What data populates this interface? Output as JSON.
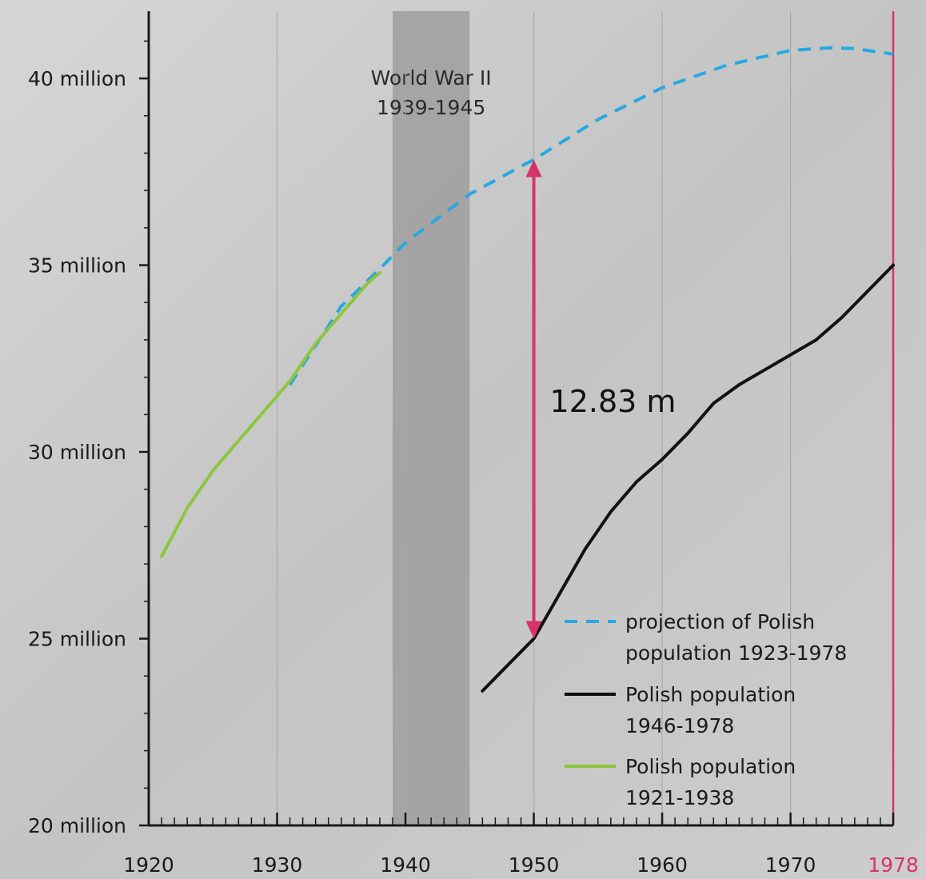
{
  "chart_data": {
    "type": "line",
    "xlim": [
      1920,
      1978
    ],
    "ylim": [
      20,
      41.8
    ],
    "y_unit": "million",
    "grid": "vertical lines at decades",
    "x_ticks": [
      {
        "value": 1920,
        "label": "1920"
      },
      {
        "value": 1930,
        "label": "1930"
      },
      {
        "value": 1940,
        "label": "1940"
      },
      {
        "value": 1950,
        "label": "1950"
      },
      {
        "value": 1960,
        "label": "1960"
      },
      {
        "value": 1970,
        "label": "1970"
      },
      {
        "value": 1978,
        "label": "1978",
        "highlight": true
      }
    ],
    "y_ticks": [
      {
        "value": 20,
        "label": "20 million"
      },
      {
        "value": 25,
        "label": "25 million"
      },
      {
        "value": 30,
        "label": "30 million"
      },
      {
        "value": 35,
        "label": "35 million"
      },
      {
        "value": 40,
        "label": "40 million"
      }
    ],
    "shaded_band": {
      "x_start": 1939,
      "x_end": 1945,
      "label_line1": "World War II",
      "label_line2": "1939-1945"
    },
    "annotation": {
      "x": 1950,
      "y_from": 25.0,
      "y_to": 37.83,
      "label": "12.83 m"
    },
    "series": [
      {
        "name_line1": "projection of Polish",
        "name_line2": "population 1923-1978",
        "style": "dashed",
        "color": "#29a8e0",
        "x": [
          1931,
          1935,
          1938,
          1940,
          1945,
          1950,
          1955,
          1960,
          1965,
          1970,
          1973,
          1975,
          1978
        ],
        "y": [
          31.8,
          33.9,
          34.9,
          35.6,
          36.9,
          37.83,
          38.9,
          39.75,
          40.35,
          40.75,
          40.82,
          40.8,
          40.65
        ]
      },
      {
        "name_line1": "Polish population",
        "name_line2": "1946-1978",
        "style": "solid",
        "color": "#111111",
        "x": [
          1946,
          1948,
          1950,
          1952,
          1954,
          1956,
          1958,
          1960,
          1962,
          1964,
          1966,
          1968,
          1970,
          1972,
          1974,
          1976,
          1978
        ],
        "y": [
          23.6,
          24.3,
          25.0,
          26.2,
          27.4,
          28.4,
          29.2,
          29.8,
          30.5,
          31.3,
          31.8,
          32.2,
          32.6,
          33.0,
          33.6,
          34.3,
          35.0
        ]
      },
      {
        "name_line1": "Polish population",
        "name_line2": "1921-1938",
        "style": "solid",
        "color": "#8cc63f",
        "x": [
          1921,
          1923,
          1925,
          1927,
          1929,
          1931,
          1933,
          1935,
          1937,
          1938
        ],
        "y": [
          27.2,
          28.5,
          29.5,
          30.3,
          31.1,
          31.9,
          32.9,
          33.7,
          34.5,
          34.8
        ]
      }
    ]
  },
  "colors": {
    "accent_1978": "#d6336c",
    "arrow": "#d6336c",
    "band": "#9b9b9b",
    "gridline": "#aaaaaa",
    "axis": "#1a1a1a"
  }
}
